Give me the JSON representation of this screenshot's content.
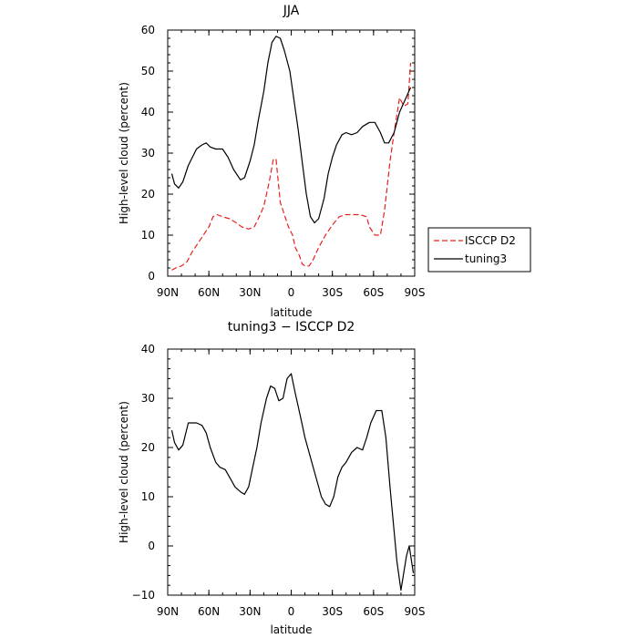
{
  "chart_data": [
    {
      "type": "line",
      "title": "JJA",
      "xlabel": "latitude",
      "ylabel": "High-level cloud (percent)",
      "xlim": [
        90,
        -90
      ],
      "ylim": [
        0,
        60
      ],
      "x_ticks": [
        90,
        60,
        30,
        0,
        -30,
        -60,
        -90
      ],
      "x_tick_labels": [
        "90N",
        "60N",
        "30N",
        "0",
        "30S",
        "60S",
        "90S"
      ],
      "y_ticks": [
        0,
        10,
        20,
        30,
        40,
        50,
        60
      ],
      "y_tick_labels": [
        "0",
        "10",
        "20",
        "30",
        "40",
        "50",
        "60"
      ],
      "grid": false,
      "legend_position": "outside-right",
      "series": [
        {
          "name": "ISCCP D2",
          "color": "#e8201c",
          "style": "dashed",
          "points": [
            [
              87,
              1.5
            ],
            [
              84,
              2
            ],
            [
              80,
              2.5
            ],
            [
              76,
              3.5
            ],
            [
              72,
              6
            ],
            [
              68,
              8
            ],
            [
              64,
              10
            ],
            [
              60,
              12
            ],
            [
              57,
              14.5
            ],
            [
              54,
              15
            ],
            [
              50,
              14.5
            ],
            [
              45,
              14
            ],
            [
              40,
              13
            ],
            [
              36,
              12
            ],
            [
              31,
              11.5
            ],
            [
              27,
              12
            ],
            [
              24,
              14
            ],
            [
              20,
              17
            ],
            [
              16,
              23
            ],
            [
              13,
              28.5
            ],
            [
              11,
              28.5
            ],
            [
              8,
              18
            ],
            [
              5,
              15
            ],
            [
              2,
              12
            ],
            [
              -1,
              10
            ],
            [
              -3,
              7
            ],
            [
              -6,
              5
            ],
            [
              -8,
              3
            ],
            [
              -10,
              2.5
            ],
            [
              -13,
              2.5
            ],
            [
              -16,
              4
            ],
            [
              -20,
              7
            ],
            [
              -25,
              10
            ],
            [
              -30,
              12.5
            ],
            [
              -35,
              14.5
            ],
            [
              -40,
              15
            ],
            [
              -45,
              15
            ],
            [
              -50,
              15
            ],
            [
              -55,
              14.5
            ],
            [
              -57,
              12
            ],
            [
              -61,
              10
            ],
            [
              -65,
              10
            ],
            [
              -68,
              16
            ],
            [
              -72,
              28
            ],
            [
              -75,
              35
            ],
            [
              -79,
              43.5
            ],
            [
              -82,
              41.5
            ],
            [
              -85,
              42
            ],
            [
              -87,
              52
            ]
          ]
        },
        {
          "name": "tuning3",
          "color": "#000000",
          "style": "solid",
          "points": [
            [
              87,
              25
            ],
            [
              85,
              22.5
            ],
            [
              82,
              21.5
            ],
            [
              79,
              23
            ],
            [
              75,
              27
            ],
            [
              72,
              29
            ],
            [
              69,
              31
            ],
            [
              65,
              32
            ],
            [
              62,
              32.5
            ],
            [
              59,
              31.5
            ],
            [
              55,
              31
            ],
            [
              50,
              31
            ],
            [
              46,
              29
            ],
            [
              42,
              26
            ],
            [
              37,
              23.5
            ],
            [
              34,
              24
            ],
            [
              30,
              28
            ],
            [
              27,
              32
            ],
            [
              24,
              38
            ],
            [
              20,
              45
            ],
            [
              17,
              52
            ],
            [
              14,
              57
            ],
            [
              11,
              58.5
            ],
            [
              8,
              58
            ],
            [
              5,
              55
            ],
            [
              1,
              50
            ],
            [
              -2,
              43
            ],
            [
              -5,
              36
            ],
            [
              -8,
              28
            ],
            [
              -11,
              20
            ],
            [
              -14,
              14.5
            ],
            [
              -17,
              13
            ],
            [
              -20,
              14
            ],
            [
              -24,
              19
            ],
            [
              -27,
              25
            ],
            [
              -30,
              29
            ],
            [
              -33,
              32
            ],
            [
              -37,
              34.5
            ],
            [
              -40,
              35
            ],
            [
              -44,
              34.5
            ],
            [
              -48,
              35
            ],
            [
              -52,
              36.5
            ],
            [
              -57,
              37.5
            ],
            [
              -61,
              37.5
            ],
            [
              -65,
              35
            ],
            [
              -68,
              32.5
            ],
            [
              -71,
              32.5
            ],
            [
              -75,
              35
            ],
            [
              -79,
              40
            ],
            [
              -83,
              43
            ],
            [
              -87,
              46
            ]
          ]
        }
      ]
    },
    {
      "type": "line",
      "title": "tuning3 − ISCCP D2",
      "xlabel": "latitude",
      "ylabel": "High-level cloud (percent)",
      "xlim": [
        90,
        -90
      ],
      "ylim": [
        -10,
        40
      ],
      "x_ticks": [
        90,
        60,
        30,
        0,
        -30,
        -60,
        -90
      ],
      "x_tick_labels": [
        "90N",
        "60N",
        "30N",
        "0",
        "30S",
        "60S",
        "90S"
      ],
      "y_ticks": [
        -10,
        0,
        10,
        20,
        30,
        40
      ],
      "y_tick_labels": [
        "−10",
        "0",
        "10",
        "20",
        "30",
        "40"
      ],
      "grid": false,
      "series": [
        {
          "color": "#000000",
          "style": "solid",
          "points": [
            [
              87,
              23.5
            ],
            [
              85,
              21
            ],
            [
              82,
              19.5
            ],
            [
              79,
              20.5
            ],
            [
              75,
              25
            ],
            [
              72,
              25
            ],
            [
              69,
              25
            ],
            [
              65,
              24.5
            ],
            [
              62,
              23
            ],
            [
              59,
              20
            ],
            [
              55,
              17
            ],
            [
              52,
              16
            ],
            [
              48,
              15.5
            ],
            [
              45,
              14
            ],
            [
              41,
              12
            ],
            [
              37,
              11
            ],
            [
              34,
              10.5
            ],
            [
              31,
              12
            ],
            [
              28,
              16
            ],
            [
              25,
              20
            ],
            [
              22,
              25
            ],
            [
              18,
              30
            ],
            [
              15,
              32.5
            ],
            [
              12,
              32
            ],
            [
              9,
              29.5
            ],
            [
              6,
              30
            ],
            [
              3,
              34
            ],
            [
              0,
              35
            ],
            [
              -3,
              31
            ],
            [
              -7,
              26
            ],
            [
              -10,
              22
            ],
            [
              -14,
              18
            ],
            [
              -18,
              14
            ],
            [
              -22,
              10
            ],
            [
              -25,
              8.5
            ],
            [
              -28,
              8
            ],
            [
              -31,
              10
            ],
            [
              -34,
              14
            ],
            [
              -37,
              16
            ],
            [
              -40,
              17
            ],
            [
              -44,
              19
            ],
            [
              -48,
              20
            ],
            [
              -52,
              19.5
            ],
            [
              -55,
              22
            ],
            [
              -58,
              25
            ],
            [
              -62,
              27.5
            ],
            [
              -66,
              27.5
            ],
            [
              -69,
              22
            ],
            [
              -72,
              12
            ],
            [
              -75,
              3
            ],
            [
              -77,
              -3
            ],
            [
              -80,
              -9
            ],
            [
              -84,
              -2
            ],
            [
              -86,
              0
            ],
            [
              -89,
              -5.5
            ]
          ]
        }
      ]
    }
  ]
}
